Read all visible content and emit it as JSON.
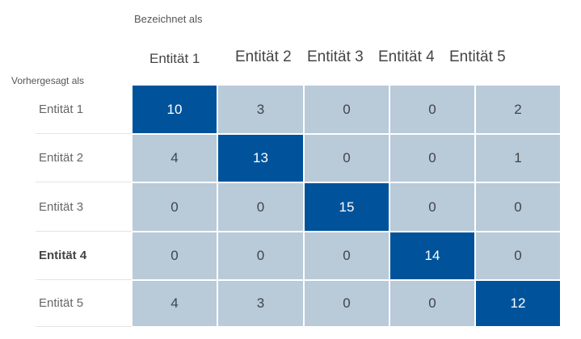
{
  "chart_data": {
    "type": "heatmap",
    "xlabel": "Bezeichnet als",
    "ylabel": "Vorhergesagt als",
    "columns": [
      "Entität 1",
      "Entität 2",
      "Entität 3",
      "Entität 4",
      "Entität 5"
    ],
    "rows": [
      "Entität 1",
      "Entität 2",
      "Entität 3",
      "Entität 4",
      "Entität 5"
    ],
    "values": [
      [
        10,
        3,
        0,
        0,
        2
      ],
      [
        4,
        13,
        0,
        0,
        1
      ],
      [
        0,
        0,
        15,
        0,
        0
      ],
      [
        0,
        0,
        0,
        14,
        0
      ],
      [
        4,
        3,
        0,
        0,
        12
      ]
    ],
    "highlight_diagonal": true,
    "colors": {
      "diagonal": "#00539b",
      "off_diagonal": "#b9cad9"
    }
  }
}
